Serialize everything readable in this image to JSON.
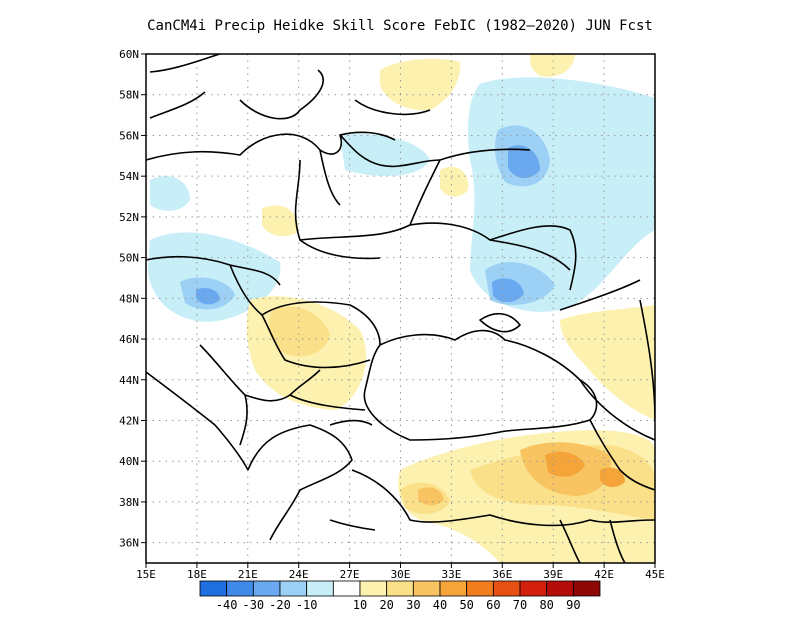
{
  "title": "CanCM4i Precip Heidke Skill Score FebIC (1982–2020) JUN Fcst",
  "map": {
    "lon_range": [
      15,
      45
    ],
    "lat_range": [
      35,
      60
    ],
    "lon_ticks": [
      "15E",
      "18E",
      "21E",
      "24E",
      "27E",
      "30E",
      "33E",
      "36E",
      "39E",
      "42E",
      "45E"
    ],
    "lat_ticks": [
      "36N",
      "38N",
      "40N",
      "42N",
      "44N",
      "46N",
      "48N",
      "50N",
      "52N",
      "54N",
      "56N",
      "58N",
      "60N"
    ],
    "grid": "dotted"
  },
  "colorbar": {
    "labels": [
      "-40",
      "-30",
      "-20",
      "-10",
      "10",
      "20",
      "30",
      "40",
      "50",
      "60",
      "70",
      "80",
      "90"
    ],
    "colors": [
      "#1f6fe0",
      "#3f8ae8",
      "#6aa9ef",
      "#9dd0f5",
      "#c8eef8",
      "#ffffff",
      "#fdf1b0",
      "#fbe08a",
      "#f8c461",
      "#f5a43a",
      "#f07d1e",
      "#e65012",
      "#d2200c",
      "#b50d0a",
      "#8f0808"
    ]
  },
  "colors": {
    "neg_light": "#c8eef8",
    "neg_mid": "#9dd0f5",
    "neg_dark": "#6aa9ef",
    "pos_light": "#fdf1b0",
    "pos_mid": "#fbe08a",
    "pos_dark": "#f8c461",
    "pos_darker": "#f5a43a"
  }
}
